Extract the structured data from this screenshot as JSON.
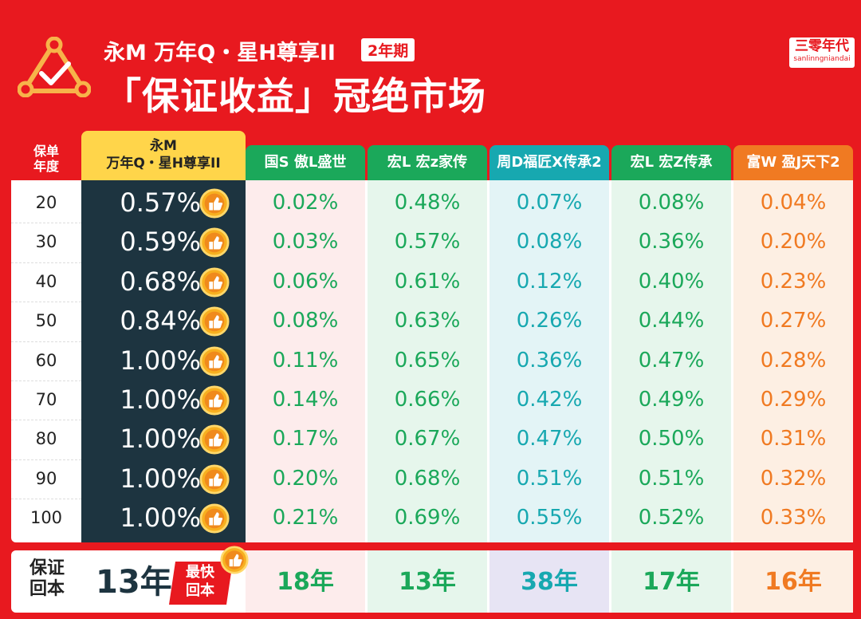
{
  "header": {
    "title_line1": "永M 万年Q・星H尊享II",
    "badge": "2年期",
    "title_line2": "「保证收益」冠绝市场",
    "brand_cn": "三零年代",
    "brand_en": "sanlinngniandai",
    "logo_icon": "triangle-check-logo-icon"
  },
  "table": {
    "row_header_label": "保单\n年度",
    "star_product": {
      "name_line1": "永M",
      "name_line2": "万年Q・星H尊享II",
      "badge_icon": "thumbs-up-medal-icon"
    },
    "columns": [
      {
        "name": "国S 傲L盛世",
        "head_color": "#1ba85a",
        "bg_color": "#fdecec",
        "text_color": "#1ba85a"
      },
      {
        "name": "宏L 宏z家传",
        "head_color": "#1ba85a",
        "bg_color": "#e6f6ec",
        "text_color": "#1ba85a"
      },
      {
        "name": "周D福匠X传承2",
        "head_color": "#17a8b0",
        "bg_color": "#e3f4f6",
        "text_color": "#17a8b0"
      },
      {
        "name": "宏L 宏Z传承",
        "head_color": "#1ba85a",
        "bg_color": "#e6f6ec",
        "text_color": "#1ba85a"
      },
      {
        "name": "富W 盈J天下2",
        "head_color": "#f07a22",
        "bg_color": "#fdefe3",
        "text_color": "#f07a22"
      }
    ],
    "rows": [
      {
        "year": "20",
        "star": "0.57%",
        "values": [
          "0.02%",
          "0.48%",
          "0.07%",
          "0.08%",
          "0.04%"
        ]
      },
      {
        "year": "30",
        "star": "0.59%",
        "values": [
          "0.03%",
          "0.57%",
          "0.08%",
          "0.36%",
          "0.20%"
        ]
      },
      {
        "year": "40",
        "star": "0.68%",
        "values": [
          "0.06%",
          "0.61%",
          "0.12%",
          "0.40%",
          "0.23%"
        ]
      },
      {
        "year": "50",
        "star": "0.84%",
        "values": [
          "0.08%",
          "0.63%",
          "0.26%",
          "0.44%",
          "0.27%"
        ]
      },
      {
        "year": "60",
        "star": "1.00%",
        "values": [
          "0.11%",
          "0.65%",
          "0.36%",
          "0.47%",
          "0.28%"
        ]
      },
      {
        "year": "70",
        "star": "1.00%",
        "values": [
          "0.14%",
          "0.66%",
          "0.42%",
          "0.49%",
          "0.29%"
        ]
      },
      {
        "year": "80",
        "star": "1.00%",
        "values": [
          "0.17%",
          "0.67%",
          "0.47%",
          "0.50%",
          "0.31%"
        ]
      },
      {
        "year": "90",
        "star": "1.00%",
        "values": [
          "0.20%",
          "0.68%",
          "0.51%",
          "0.51%",
          "0.32%"
        ]
      },
      {
        "year": "100",
        "star": "1.00%",
        "values": [
          "0.21%",
          "0.69%",
          "0.55%",
          "0.52%",
          "0.33%"
        ]
      }
    ]
  },
  "breakeven": {
    "label": "保证\n回本",
    "star": "13年",
    "fastest_badge": "最快\n回本",
    "values": [
      {
        "text": "18年",
        "bg_color": "#fdecec",
        "text_color": "#1ba85a"
      },
      {
        "text": "13年",
        "bg_color": "#e6f6ec",
        "text_color": "#1ba85a"
      },
      {
        "text": "38年",
        "bg_color": "#e7e4f4",
        "text_color": "#17a8b0"
      },
      {
        "text": "17年",
        "bg_color": "#e6f6ec",
        "text_color": "#1ba85a"
      },
      {
        "text": "16年",
        "bg_color": "#fdefe3",
        "text_color": "#f07a22"
      }
    ]
  }
}
